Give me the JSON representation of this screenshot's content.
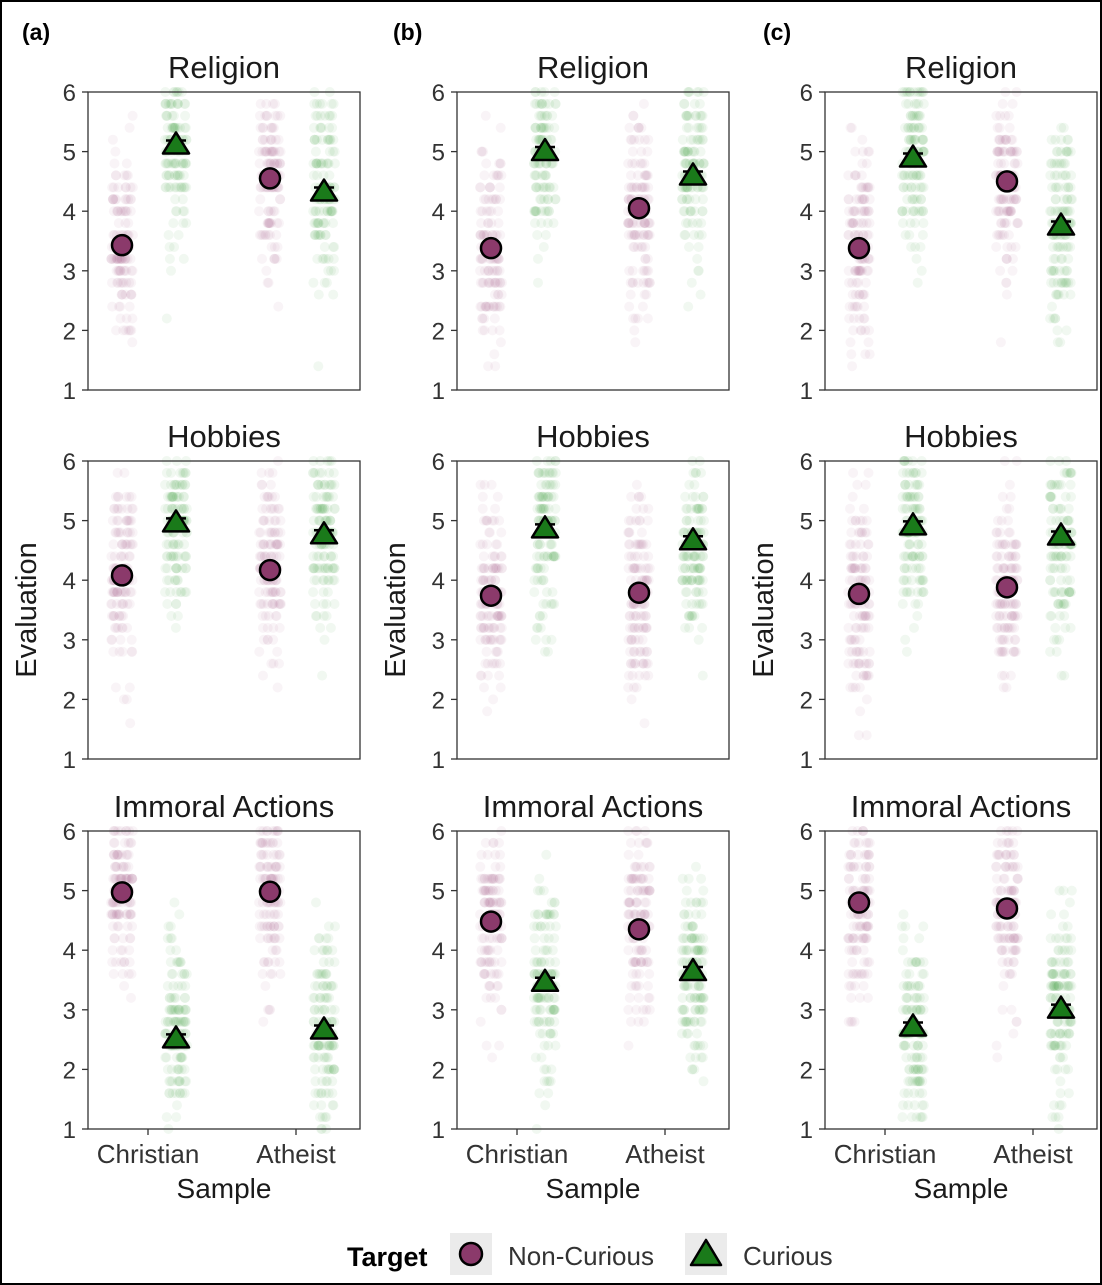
{
  "legend": {
    "title": "Target",
    "items": [
      {
        "label": "Non-Curious",
        "shape": "circle",
        "fill": "#8b3a6b"
      },
      {
        "label": "Curious",
        "shape": "triangle",
        "fill": "#1a7a1a"
      }
    ]
  },
  "colors": {
    "non_curious": "#8b3a6b",
    "curious": "#1a7a1a",
    "non_curious_jitter": "#b06090",
    "curious_jitter": "#3a9a3a",
    "panel_border": "#333333",
    "figure_border": "#000000"
  },
  "chart_data": [
    {
      "panel_label": "(a)",
      "type": "scatter",
      "xlabel": "Sample",
      "ylabel": "Evaluation",
      "categories": [
        "Christian",
        "Atheist"
      ],
      "ylim": [
        1,
        6
      ],
      "yticks": [
        "1",
        "2",
        "3",
        "4",
        "5",
        "6"
      ],
      "facets": [
        {
          "title": "Religion",
          "series": [
            {
              "name": "Non-Curious",
              "values": [
                3.43,
                4.55
              ]
            },
            {
              "name": "Curious",
              "values": [
                5.12,
                4.33
              ]
            }
          ]
        },
        {
          "title": "Hobbies",
          "series": [
            {
              "name": "Non-Curious",
              "values": [
                4.08,
                4.17
              ]
            },
            {
              "name": "Curious",
              "values": [
                4.97,
                4.77
              ]
            }
          ]
        },
        {
          "title": "Immoral Actions",
          "series": [
            {
              "name": "Non-Curious",
              "values": [
                4.97,
                4.98
              ]
            },
            {
              "name": "Curious",
              "values": [
                2.52,
                2.67
              ]
            }
          ]
        }
      ]
    },
    {
      "panel_label": "(b)",
      "type": "scatter",
      "xlabel": "Sample",
      "ylabel": "Evaluation",
      "categories": [
        "Christian",
        "Atheist"
      ],
      "ylim": [
        1,
        6
      ],
      "yticks": [
        "1",
        "2",
        "3",
        "4",
        "5",
        "6"
      ],
      "facets": [
        {
          "title": "Religion",
          "series": [
            {
              "name": "Non-Curious",
              "values": [
                3.38,
                4.05
              ]
            },
            {
              "name": "Curious",
              "values": [
                5.01,
                4.6
              ]
            }
          ]
        },
        {
          "title": "Hobbies",
          "series": [
            {
              "name": "Non-Curious",
              "values": [
                3.74,
                3.79
              ]
            },
            {
              "name": "Curious",
              "values": [
                4.87,
                4.67
              ]
            }
          ]
        },
        {
          "title": "Immoral Actions",
          "series": [
            {
              "name": "Non-Curious",
              "values": [
                4.48,
                4.35
              ]
            },
            {
              "name": "Curious",
              "values": [
                3.47,
                3.65
              ]
            }
          ]
        }
      ]
    },
    {
      "panel_label": "(c)",
      "type": "scatter",
      "xlabel": "Sample",
      "ylabel": "Evaluation",
      "categories": [
        "Christian",
        "Atheist"
      ],
      "ylim": [
        1,
        6
      ],
      "yticks": [
        "1",
        "2",
        "3",
        "4",
        "5",
        "6"
      ],
      "facets": [
        {
          "title": "Religion",
          "series": [
            {
              "name": "Non-Curious",
              "values": [
                3.38,
                4.5
              ]
            },
            {
              "name": "Curious",
              "values": [
                4.9,
                3.76
              ]
            }
          ]
        },
        {
          "title": "Hobbies",
          "series": [
            {
              "name": "Non-Curious",
              "values": [
                3.77,
                3.88
              ]
            },
            {
              "name": "Curious",
              "values": [
                4.92,
                4.75
              ]
            }
          ]
        },
        {
          "title": "Immoral Actions",
          "series": [
            {
              "name": "Non-Curious",
              "values": [
                4.8,
                4.7
              ]
            },
            {
              "name": "Curious",
              "values": [
                2.72,
                3.02
              ]
            }
          ]
        }
      ]
    }
  ]
}
